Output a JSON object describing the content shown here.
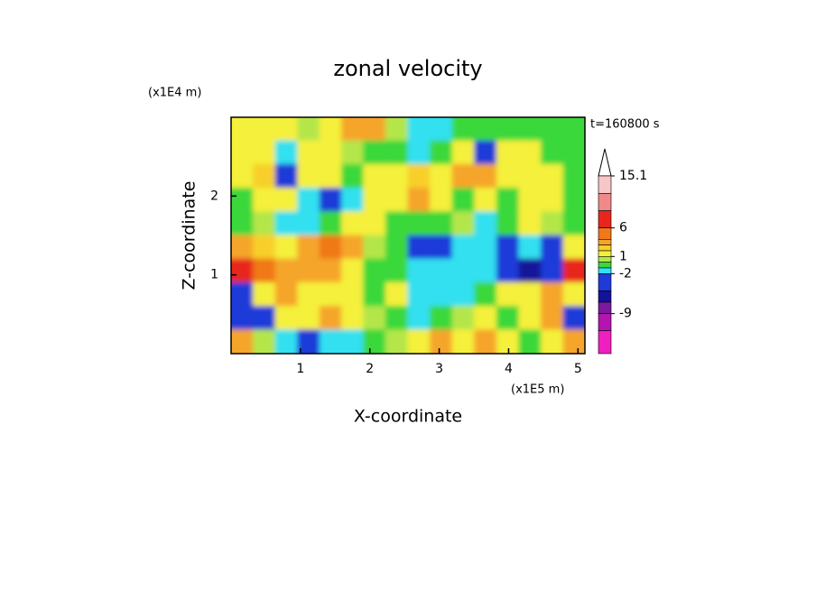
{
  "chart_data": {
    "type": "contour",
    "title": "zonal velocity",
    "xlabel": "X-coordinate",
    "ylabel": "Z-coordinate",
    "xunit": "(x1E5 m)",
    "yunit": "(x1E4 m)",
    "annotation": "t=160800 s",
    "xlim": [
      0,
      5.1
    ],
    "ylim": [
      0,
      3.0
    ],
    "xticks": [
      1,
      2,
      3,
      4,
      5
    ],
    "yticks": [
      1,
      2
    ],
    "x": [
      0.16,
      0.48,
      0.8,
      1.12,
      1.44,
      1.75,
      2.07,
      2.39,
      2.71,
      3.03,
      3.35,
      3.67,
      3.99,
      4.31,
      4.63,
      4.95
    ],
    "z": [
      2.85,
      2.55,
      2.25,
      1.95,
      1.65,
      1.35,
      1.05,
      0.75,
      0.45,
      0.15
    ],
    "values": [
      [
        1.5,
        1.5,
        1.5,
        0.5,
        1.5,
        3.5,
        3.5,
        0.5,
        -1.5,
        -1.5,
        -0.5,
        -0.5,
        -0.5,
        -0.5,
        -0.5,
        -0.5
      ],
      [
        1.5,
        1.5,
        -1.5,
        1.5,
        1.5,
        0.5,
        -0.5,
        -0.5,
        -1.5,
        -0.5,
        1.5,
        -3,
        1.5,
        1.5,
        -0.5,
        -0.5
      ],
      [
        1.5,
        2.5,
        -3,
        1.5,
        1.5,
        -0.5,
        1.5,
        1.5,
        2.5,
        1.5,
        3.5,
        3.5,
        1.5,
        1.5,
        1.5,
        -0.5
      ],
      [
        -0.5,
        1.5,
        1.5,
        -1.5,
        -3,
        -1.5,
        1.5,
        1.5,
        3.5,
        1.5,
        -0.5,
        1.5,
        -0.5,
        1.5,
        1.5,
        -0.5
      ],
      [
        -0.5,
        0.5,
        -1.5,
        -1.5,
        -0.5,
        1.5,
        1.5,
        -0.5,
        -0.5,
        -0.5,
        0.5,
        -1.5,
        -0.5,
        1.5,
        0.5,
        -0.5
      ],
      [
        3.5,
        2.5,
        1.5,
        3.5,
        5,
        3.5,
        0.5,
        -0.5,
        -3,
        -3,
        -1.5,
        -1.5,
        -3,
        -1.5,
        -3,
        1.5
      ],
      [
        7,
        5,
        3.5,
        3.5,
        3.5,
        1.5,
        -0.5,
        -0.5,
        -1.5,
        -1.5,
        -1.5,
        -1.5,
        -3,
        -6,
        -3,
        7
      ],
      [
        -3,
        1.5,
        3.5,
        1.5,
        1.5,
        1.5,
        -0.5,
        1.5,
        -1.5,
        -1.5,
        -1.5,
        -0.5,
        1.5,
        1.5,
        3.5,
        1.5
      ],
      [
        -3,
        -3,
        1.5,
        1.5,
        3.5,
        1.5,
        0.5,
        -0.5,
        -1.5,
        -0.5,
        0.5,
        1.5,
        -0.5,
        1.5,
        3.5,
        -3
      ],
      [
        3.5,
        0.5,
        -1.5,
        -3,
        -1.5,
        -1.5,
        -0.5,
        0.5,
        1.5,
        3.5,
        1.5,
        3.5,
        1.5,
        -0.5,
        1.5,
        3.5
      ]
    ],
    "colorbar": {
      "levels": [
        15.1,
        12,
        9,
        6,
        4,
        3,
        2,
        1,
        0,
        -1,
        -2,
        -5,
        -7,
        -9,
        -12,
        -16
      ],
      "colors": [
        "#f7c6c6",
        "#f08a8a",
        "#e8261e",
        "#f07818",
        "#f5a52a",
        "#f8cf2a",
        "#f5f03a",
        "#b4e64a",
        "#3ad83a",
        "#30e0f0",
        "#1f3ad8",
        "#12129a",
        "#7a1a9e",
        "#b414b0",
        "#f020c0"
      ],
      "ticks": [
        15.1,
        6,
        1,
        -2,
        -9
      ]
    }
  }
}
